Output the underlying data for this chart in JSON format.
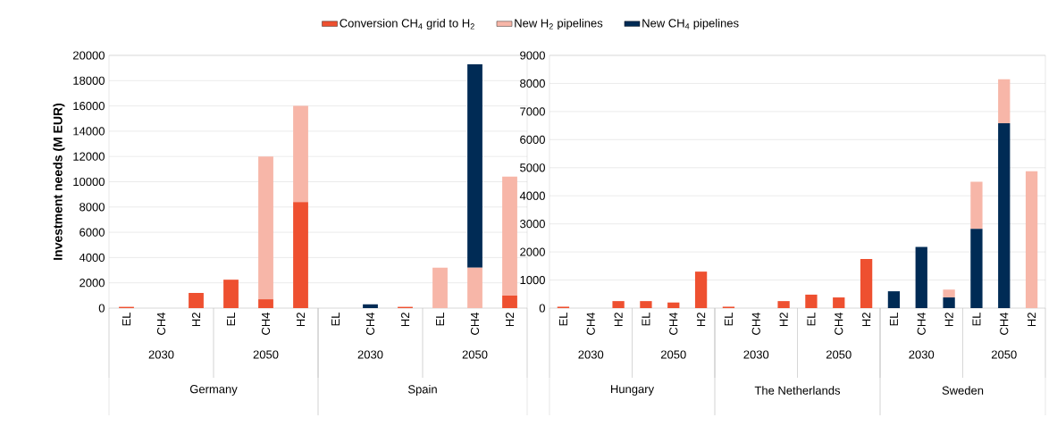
{
  "chart_data": [
    {
      "type": "bar",
      "stacked": true,
      "ylabel": "Investment needs (M EUR)",
      "categories": [
        "EL",
        "CH4",
        "H2",
        "EL",
        "CH4",
        "H2",
        "EL",
        "CH4",
        "H2",
        "EL",
        "CH4",
        "H2"
      ],
      "series": [
        {
          "name": "Conversion CH$_{4}$ grid to H$_{2}$",
          "color": "#ee5030",
          "values": [
            100,
            0,
            1200,
            2250,
            700,
            8400,
            0,
            0,
            100,
            0,
            0,
            1000
          ]
        },
        {
          "name": "New H$_{2}$ pipelines",
          "color": "#f7b6a8",
          "values": [
            0,
            0,
            0,
            0,
            11300,
            7600,
            0,
            0,
            0,
            3200,
            3200,
            9400
          ]
        },
        {
          "name": "New CH$_{4}$ pipelines",
          "color": "#002b55",
          "values": [
            0,
            0,
            0,
            0,
            0,
            0,
            0,
            300,
            0,
            0,
            16100,
            0
          ]
        }
      ],
      "ylim": [
        0,
        20000
      ],
      "yticks": [
        0,
        2000,
        4000,
        6000,
        8000,
        10000,
        12000,
        14000,
        16000,
        18000,
        20000
      ],
      "grid": "y",
      "legend": "top",
      "annotations": [
        "2030",
        "2050",
        "2030",
        "2050",
        "Germany",
        "Spain"
      ]
    },
    {
      "type": "bar",
      "stacked": true,
      "categories": [
        "EL",
        "CH4",
        "H2",
        "EL",
        "CH4",
        "H2",
        "EL",
        "CH4",
        "H2",
        "EL",
        "CH4",
        "H2",
        "EL",
        "CH4",
        "H2",
        "EL",
        "CH4",
        "H2"
      ],
      "series": [
        {
          "color": "#ee5030",
          "values": [
            50,
            0,
            250,
            250,
            200,
            1300,
            50,
            0,
            250,
            480,
            380,
            1750,
            0,
            0,
            0,
            0,
            0,
            0
          ]
        },
        {
          "color": "#002b55",
          "values": [
            0,
            0,
            0,
            0,
            0,
            0,
            0,
            0,
            0,
            0,
            0,
            0,
            600,
            2180,
            380,
            2820,
            6580,
            0
          ]
        },
        {
          "color": "#f7b6a8",
          "values": [
            0,
            0,
            0,
            0,
            0,
            0,
            0,
            0,
            0,
            0,
            0,
            0,
            null,
            null,
            280,
            1680,
            1570,
            4870
          ]
        }
      ],
      "ylim": [
        0,
        9000
      ],
      "yticks": [
        0,
        1000,
        2000,
        3000,
        4000,
        5000,
        6000,
        7000,
        8000,
        9000
      ],
      "grid": "y",
      "annotations": [
        "2030",
        "2050",
        "2030",
        "2050",
        "2030",
        "2050",
        "Hungary",
        "The Netherlands",
        "Sweden"
      ]
    }
  ]
}
